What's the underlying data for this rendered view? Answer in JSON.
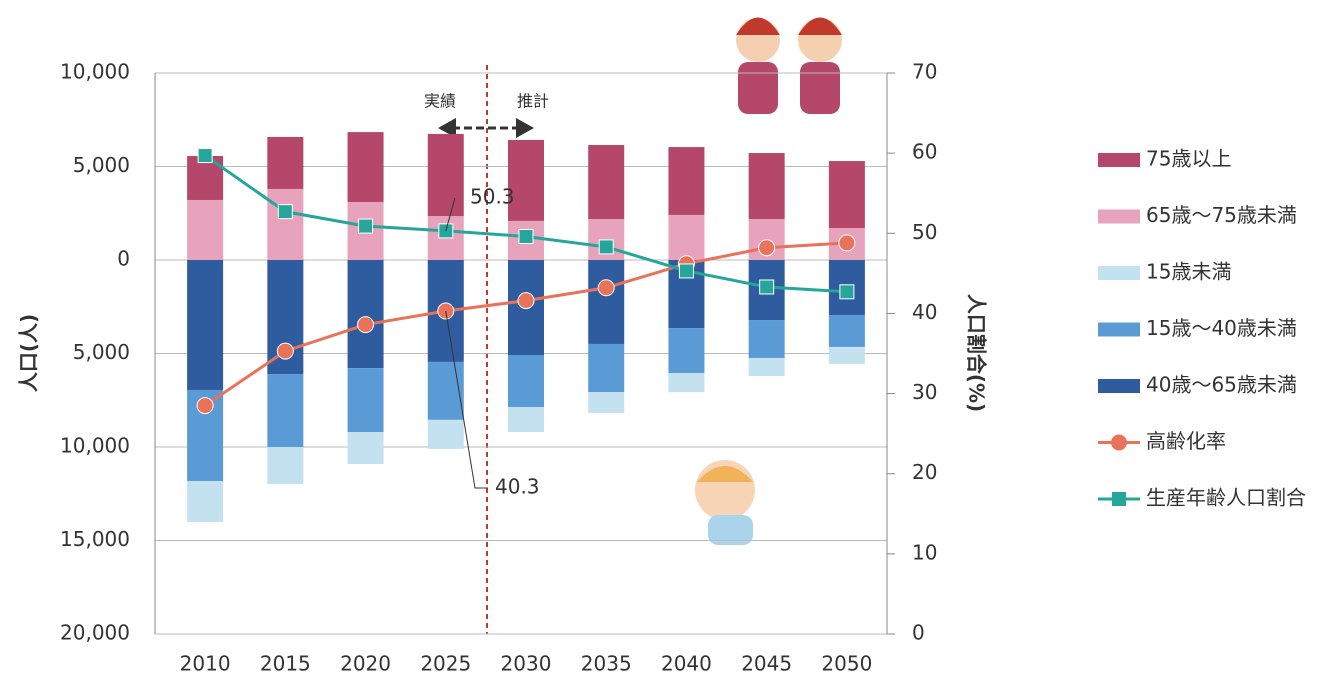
{
  "chart_data": {
    "type": "bar",
    "categories": [
      "2010",
      "2015",
      "2020",
      "2025",
      "2030",
      "2035",
      "2040",
      "2045",
      "2050"
    ],
    "series": [
      {
        "name": "75歳以上",
        "color": "#b5476a",
        "values": [
          2350,
          2780,
          3740,
          4390,
          4330,
          3960,
          3630,
          3530,
          3580
        ]
      },
      {
        "name": "65歳～75歳未満",
        "color": "#e6a3bb",
        "values": [
          3210,
          3800,
          3100,
          2350,
          2090,
          2190,
          2410,
          2190,
          1710
        ]
      },
      {
        "name": "15歳未満",
        "color": "#c3e1ef",
        "values": [
          -2190,
          -1980,
          -1710,
          -1550,
          -1340,
          -1120,
          -1020,
          -960,
          -910
        ]
      },
      {
        "name": "15歳～40歳未満",
        "color": "#5b9bd5",
        "values": [
          -4870,
          -3900,
          -3420,
          -3100,
          -2780,
          -2570,
          -2410,
          -2030,
          -1710
        ]
      },
      {
        "name": "40歳～65歳未満",
        "color": "#2e5c9e",
        "values": [
          -6950,
          -6100,
          -5780,
          -5450,
          -5080,
          -4490,
          -3640,
          -3210,
          -2940
        ]
      },
      {
        "name": "高齢化率",
        "type": "line",
        "axis": "y2",
        "marker": "circle",
        "color": "#e8735a",
        "values": [
          28.5,
          35.3,
          38.6,
          40.3,
          41.6,
          43.2,
          46.2,
          48.2,
          48.8
        ]
      },
      {
        "name": "生産年齢人口割合",
        "type": "line",
        "axis": "y2",
        "marker": "square",
        "color": "#26a69a",
        "values": [
          59.7,
          52.7,
          50.9,
          50.3,
          49.6,
          48.3,
          45.3,
          43.3,
          42.7
        ]
      }
    ],
    "y_label": "人口(人)",
    "y2_label": "人口割合(%)",
    "ylim": [
      -20000,
      10000
    ],
    "yticks": [
      {
        "value": 10000,
        "label": "10,000"
      },
      {
        "value": 5000,
        "label": "5,000"
      },
      0,
      {
        "value": -5000,
        "label": "5,000"
      },
      {
        "value": -10000,
        "label": "10,000"
      },
      {
        "value": -15000,
        "label": "15,000"
      },
      {
        "value": -20000,
        "label": "20,000"
      }
    ],
    "y2lim": [
      0,
      70
    ],
    "y2ticks": [
      0,
      10,
      20,
      30,
      40,
      50,
      60,
      70
    ],
    "grid": true,
    "legend": "right",
    "annotations": [
      {
        "text": "実績"
      },
      {
        "text": "推計"
      },
      {
        "text": "50.3"
      },
      {
        "text": "40.3"
      }
    ]
  }
}
